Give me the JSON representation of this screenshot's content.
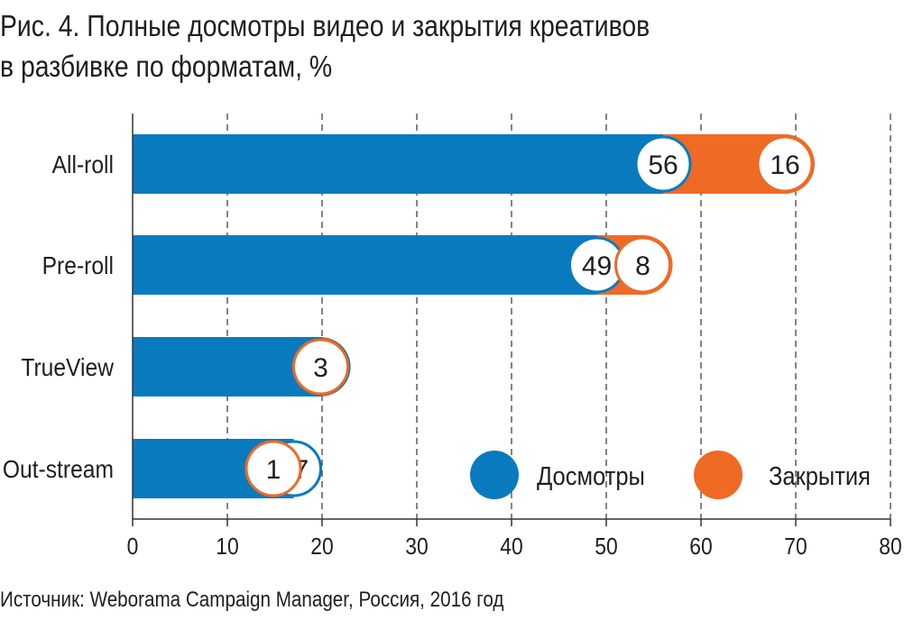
{
  "title": {
    "line1": "Рис. 4. Полные досмотры видео и закрытия креативов",
    "line2": "в разбивке по форматам, %"
  },
  "source": "Источник: Weborama Campaign Manager, Россия, 2016 год",
  "colors": {
    "views": "#0a7abf",
    "closes": "#ee6a25",
    "label_text": "#1f1f1f"
  },
  "chart_data": {
    "type": "bar",
    "stacked": true,
    "orientation": "horizontal",
    "categories": [
      "All-roll",
      "Pre-roll",
      "TrueView",
      "Out-stream"
    ],
    "series": [
      {
        "name": "Досмотры",
        "values": [
          56,
          49,
          20,
          17
        ],
        "color": "#0a7abf"
      },
      {
        "name": "Закрытия",
        "values": [
          16,
          8,
          3,
          1
        ],
        "color": "#ee6a25"
      }
    ],
    "xlim": [
      0,
      80
    ],
    "xticks": [
      "0",
      "10",
      "20",
      "30",
      "40",
      "50",
      "60",
      "70",
      "80"
    ],
    "grid": "vertical dashed",
    "legend": "inside, lower right",
    "data_labels": "circles at end of each segment"
  }
}
